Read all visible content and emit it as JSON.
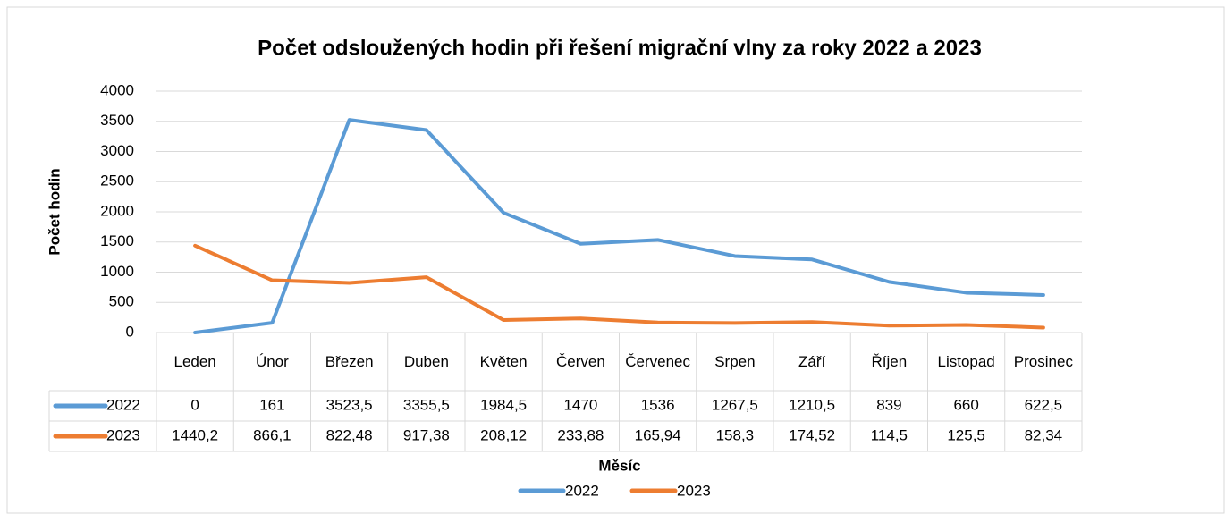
{
  "chart_data": {
    "type": "line",
    "title": "Počet odsloužených hodin při řešení migrační vlny za roky 2022 a 2023",
    "y_label": "Počet hodin",
    "x_label": "Měsíc",
    "categories": [
      "Leden",
      "Únor",
      "Březen",
      "Duben",
      "Květen",
      "Červen",
      "Červenec",
      "Srpen",
      "Září",
      "Říjen",
      "Listopad",
      "Prosinec"
    ],
    "series": [
      {
        "name": "2022",
        "color": "#5b9bd5",
        "values": [
          0,
          161,
          3523.5,
          3355.5,
          1984.5,
          1470,
          1536,
          1267.5,
          1210.5,
          839,
          660,
          622.5
        ],
        "value_labels": [
          "0",
          "161",
          "3523,5",
          "3355,5",
          "1984,5",
          "1470",
          "1536",
          "1267,5",
          "1210,5",
          "839",
          "660",
          "622,5"
        ]
      },
      {
        "name": "2023",
        "color": "#ed7d31",
        "values": [
          1440.2,
          866.1,
          822.48,
          917.38,
          208.12,
          233.88,
          165.94,
          158.3,
          174.52,
          114.5,
          125.5,
          82.34
        ],
        "value_labels": [
          "1440,2",
          "866,1",
          "822,48",
          "917,38",
          "208,12",
          "233,88",
          "165,94",
          "158,3",
          "174,52",
          "114,5",
          "125,5",
          "82,34"
        ]
      }
    ],
    "ylim": [
      0,
      4000
    ],
    "yticks": [
      0,
      500,
      1000,
      1500,
      2000,
      2500,
      3000,
      3500,
      4000
    ],
    "grid": true,
    "legend": "bottom",
    "data_table": true
  }
}
